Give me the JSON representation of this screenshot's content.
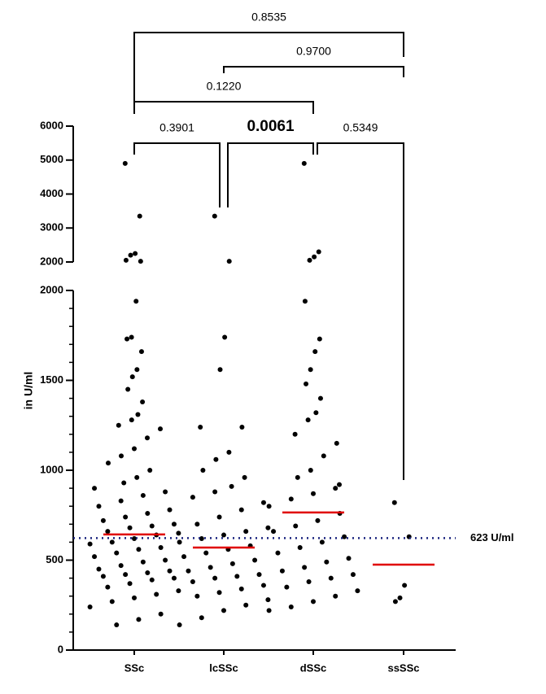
{
  "chart_data": {
    "type": "dot",
    "ylabel": "in U/ml",
    "categories": [
      "SSc",
      "lcSSc",
      "dSSc",
      "ssSSc"
    ],
    "points": [
      [
        4900,
        3350,
        2250,
        2200,
        2050,
        2020,
        1940,
        1740,
        1730,
        1660,
        1560,
        1520,
        1450,
        1380,
        1310,
        1280,
        1250,
        1230,
        1180,
        1120,
        1080,
        1040,
        1000,
        960,
        930,
        900,
        880,
        860,
        830,
        800,
        780,
        760,
        740,
        720,
        700,
        690,
        680,
        660,
        650,
        640,
        620,
        600,
        590,
        570,
        560,
        540,
        520,
        500,
        490,
        470,
        450,
        440,
        430,
        420,
        410,
        400,
        390,
        370,
        350,
        330,
        310,
        290,
        270,
        240,
        200,
        170,
        140
      ],
      [
        3350,
        2020,
        1740,
        1560,
        1240,
        1240,
        1100,
        1060,
        1000,
        960,
        910,
        880,
        850,
        820,
        780,
        740,
        700,
        680,
        660,
        640,
        620,
        600,
        580,
        560,
        540,
        520,
        500,
        480,
        460,
        440,
        420,
        410,
        400,
        380,
        360,
        340,
        320,
        300,
        280,
        250,
        220,
        180,
        140
      ],
      [
        4900,
        2300,
        2150,
        2050,
        1940,
        1730,
        1660,
        1560,
        1480,
        1400,
        1320,
        1280,
        1200,
        1150,
        1080,
        1000,
        960,
        920,
        900,
        870,
        840,
        800,
        760,
        720,
        690,
        660,
        630,
        600,
        570,
        540,
        510,
        490,
        460,
        440,
        420,
        400,
        380,
        350,
        330,
        300,
        270,
        240,
        220
      ],
      [
        820,
        630,
        360,
        290,
        270
      ]
    ],
    "point_color": "#000000",
    "medians": [
      643,
      570,
      765,
      475
    ],
    "median_color": "#e00000",
    "ylim_lower": [
      0,
      2000
    ],
    "yticks_lower": [
      0,
      500,
      1000,
      1500,
      2000
    ],
    "ylim_upper": [
      2000,
      6000
    ],
    "yticks_upper": [
      2000,
      3000,
      4000,
      5000,
      6000
    ],
    "reference": {
      "value": 623,
      "label": "623 U/ml",
      "color": "#1a237e"
    },
    "comparisons": [
      {
        "from": 0,
        "to": 3,
        "p": 0.8535
      },
      {
        "from": 1,
        "to": 3,
        "p": {
          "value": 0.97,
          "label": "0.9700"
        }
      },
      {
        "from": 0,
        "to": 2,
        "p": {
          "value": 0.122,
          "label": "0.1220"
        }
      },
      {
        "from": 0,
        "to": 1,
        "p": 0.3901
      },
      {
        "from": 1,
        "to": 2,
        "p": 0.0061,
        "bold": true
      },
      {
        "from": 2,
        "to": 3,
        "p": 0.5349
      }
    ]
  }
}
